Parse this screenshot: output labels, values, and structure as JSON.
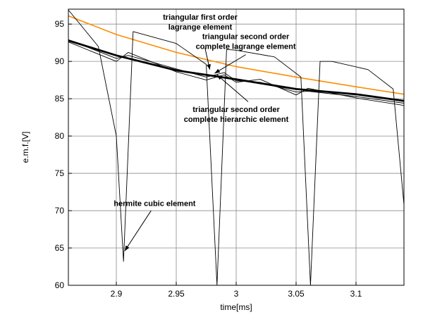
{
  "chart_data": {
    "type": "line",
    "xlabel": "time[ms]",
    "ylabel": "e.m.f.[V]",
    "xlim": [
      2.86,
      3.14
    ],
    "ylim": [
      60,
      97
    ],
    "xticks": [
      2.9,
      2.95,
      3,
      3.05,
      3.1
    ],
    "xtick_labels": [
      "2.9",
      "2.95",
      "3",
      "3.05",
      "3.1"
    ],
    "yticks": [
      60,
      65,
      70,
      75,
      80,
      85,
      90,
      95
    ],
    "ytick_labels": [
      "60",
      "65",
      "70",
      "75",
      "80",
      "85",
      "90",
      "95"
    ],
    "grid": true,
    "legend": "none",
    "series": [
      {
        "color": "#ff8c00",
        "width": 1.6,
        "x": [
          2.86,
          2.9,
          2.95,
          3.0,
          3.05,
          3.1,
          3.14
        ],
        "y": [
          96.1,
          93.6,
          91.2,
          89.3,
          87.9,
          86.6,
          85.6
        ]
      },
      {
        "color": "#000000",
        "width": 2.8,
        "x": [
          2.86,
          2.9,
          2.95,
          3.0,
          3.05,
          3.1,
          3.14
        ],
        "y": [
          92.8,
          90.8,
          88.8,
          87.6,
          86.3,
          85.6,
          84.7
        ]
      },
      {
        "color": "#000000",
        "width": 0.9,
        "x": [
          2.86,
          2.9,
          2.91,
          2.95,
          2.975,
          2.99,
          3.0,
          3.02,
          3.05,
          3.06,
          3.1,
          3.14
        ],
        "y": [
          92.6,
          90.0,
          91.2,
          88.6,
          87.5,
          88.2,
          87.2,
          87.6,
          85.5,
          86.4,
          85.1,
          84.1
        ]
      },
      {
        "color": "#000000",
        "width": 0.9,
        "x": [
          2.86,
          2.9,
          2.91,
          2.95,
          2.975,
          2.99,
          3.0,
          3.02,
          3.05,
          3.06,
          3.1,
          3.14
        ],
        "y": [
          92.9,
          90.4,
          90.8,
          89.0,
          87.9,
          88.5,
          87.4,
          87.2,
          85.9,
          86.0,
          85.3,
          84.4
        ]
      },
      {
        "color": "#000000",
        "width": 0.9,
        "x": [
          2.86,
          2.885,
          2.9,
          2.906,
          2.914,
          2.95,
          2.975,
          2.984,
          2.992,
          3.0,
          3.032,
          3.054,
          3.062,
          3.07,
          3.08,
          3.11,
          3.131,
          3.14
        ],
        "y": [
          96.9,
          92.0,
          80.0,
          63.2,
          94.0,
          92.4,
          89.6,
          60.0,
          91.6,
          91.5,
          90.6,
          87.9,
          60.0,
          90.0,
          90.0,
          88.9,
          86.3,
          70.8
        ]
      }
    ],
    "annotations": [
      {
        "lines": [
          "triangular first order",
          "lagrange element"
        ],
        "text_x": 2.97,
        "text_y": 95.6,
        "arrow_from": [
          2.974,
          91.8
        ],
        "arrow_to": [
          2.978,
          88.9
        ]
      },
      {
        "lines": [
          "triangular second order",
          "complete lagrange element"
        ],
        "text_x": 3.008,
        "text_y": 93.0,
        "arrow_from": [
          3.008,
          90.9
        ],
        "arrow_to": [
          2.982,
          88.4
        ]
      },
      {
        "lines": [
          "triangular second order",
          "complete hierarchic element"
        ],
        "text_x": 3.0,
        "text_y": 83.2,
        "arrow_from": [
          3.01,
          84.6
        ],
        "arrow_to": [
          2.984,
          88.2
        ]
      },
      {
        "lines": [
          "hermite cubic element"
        ],
        "text_x": 2.932,
        "text_y": 70.6,
        "arrow_from": [
          2.929,
          70.0
        ],
        "arrow_to": [
          2.907,
          64.6
        ]
      }
    ]
  }
}
